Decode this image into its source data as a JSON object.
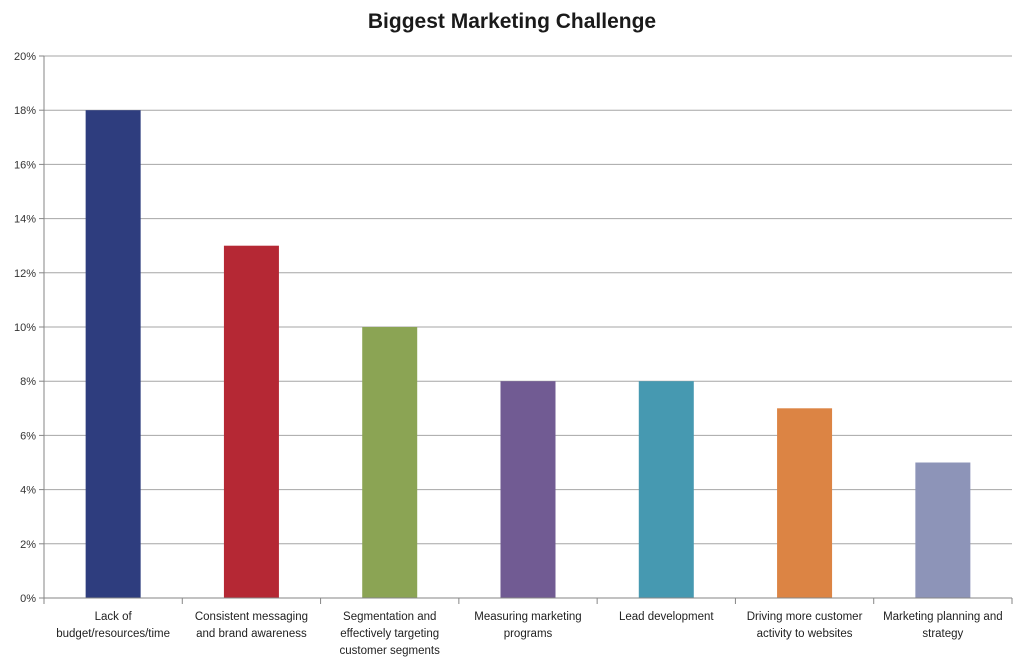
{
  "chart_data": {
    "type": "bar",
    "title": "Biggest Marketing Challenge",
    "xlabel": "",
    "ylabel": "",
    "ylim": [
      0,
      20
    ],
    "y_tick_labels": [
      "0%",
      "2%",
      "4%",
      "6%",
      "8%",
      "10%",
      "12%",
      "14%",
      "16%",
      "18%",
      "20%"
    ],
    "grid": true,
    "legend": "none",
    "categories": [
      "Lack of budget/resources/time",
      "Consistent messaging and brand awareness",
      "Segmentation and effectively targeting customer segments",
      "Measuring marketing programs",
      "Lead development",
      "Driving more customer activity to websites",
      "Marketing planning and strategy"
    ],
    "category_label_lines": [
      [
        "Lack of",
        "budget/resources/time"
      ],
      [
        "Consistent messaging",
        "and brand awareness"
      ],
      [
        "Segmentation and",
        "effectively targeting",
        "customer segments"
      ],
      [
        "Measuring marketing",
        "programs"
      ],
      [
        "Lead development"
      ],
      [
        "Driving more customer",
        "activity to websites"
      ],
      [
        "Marketing planning and",
        "strategy"
      ]
    ],
    "values": [
      18,
      13,
      10,
      8,
      8,
      7,
      5
    ],
    "colors": [
      "#2e3d7e",
      "#b52834",
      "#8ba454",
      "#715b93",
      "#4699b1",
      "#dc8444",
      "#8d94b8"
    ],
    "grid_color": "#a6a6a6",
    "axis_color": "#868686"
  }
}
